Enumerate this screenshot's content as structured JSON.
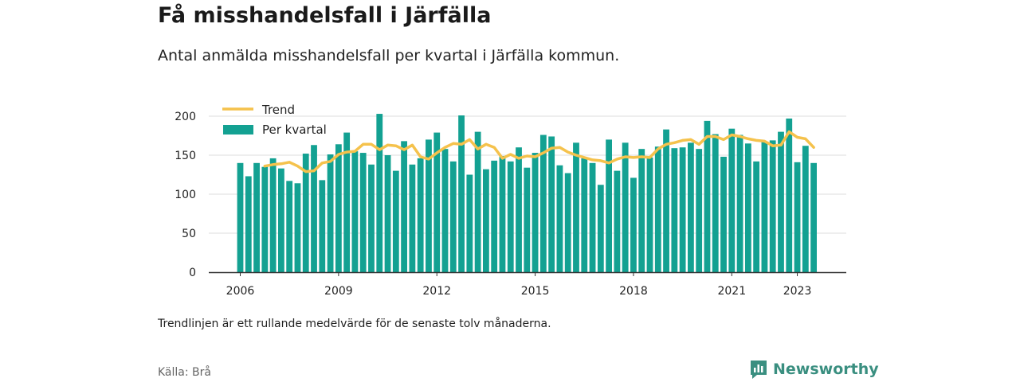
{
  "title": "Få misshandelsfall i Järfälla",
  "subtitle": "Antal anmälda misshandelsfall per kvartal i Järfälla kommun.",
  "note": "Trendlinjen är ett rullande medelvärde för de senaste tolv månaderna.",
  "source": "Källa: Brå",
  "brand": {
    "name": "Newsworthy",
    "icon": "newsworthy-logo-icon"
  },
  "colors": {
    "bars": "#13a192",
    "trend": "#f5c24c",
    "axis": "#333333",
    "grid": "#dddddd"
  },
  "chart_data": {
    "type": "bar",
    "x_start": "2006 Q1",
    "frequency": "quarterly",
    "xticks": [
      "2006",
      "2009",
      "2012",
      "2015",
      "2018",
      "2021",
      "2023"
    ],
    "yticks": [
      "0",
      "50",
      "100",
      "150",
      "200"
    ],
    "ylim": [
      0,
      210
    ],
    "grid": true,
    "legend_position": "top-left",
    "series": [
      {
        "name": "Per kvartal",
        "type": "bar",
        "values": [
          140,
          123,
          140,
          135,
          146,
          133,
          117,
          114,
          152,
          163,
          118,
          151,
          164,
          179,
          155,
          153,
          138,
          203,
          150,
          130,
          168,
          138,
          146,
          170,
          179,
          158,
          142,
          201,
          125,
          180,
          132,
          143,
          149,
          142,
          160,
          134,
          153,
          176,
          174,
          137,
          127,
          166,
          146,
          140,
          112,
          170,
          130,
          166,
          121,
          158,
          147,
          161,
          183,
          159,
          160,
          166,
          158,
          194,
          177,
          148,
          184,
          176,
          165,
          142,
          167,
          169,
          180,
          197,
          141,
          162,
          140
        ]
      },
      {
        "name": "Trend",
        "type": "line",
        "values": [
          null,
          null,
          null,
          136,
          138,
          139,
          141,
          136,
          129,
          130,
          140,
          142,
          151,
          154,
          155,
          164,
          164,
          157,
          163,
          162,
          157,
          163,
          148,
          145,
          153,
          160,
          165,
          164,
          170,
          158,
          164,
          160,
          146,
          151,
          146,
          149,
          148,
          153,
          159,
          160,
          154,
          150,
          147,
          144,
          143,
          140,
          145,
          148,
          147,
          148,
          147,
          158,
          164,
          166,
          169,
          170,
          164,
          174,
          174,
          170,
          176,
          174,
          171,
          169,
          168,
          162,
          163,
          180,
          173,
          171,
          160
        ]
      }
    ]
  }
}
